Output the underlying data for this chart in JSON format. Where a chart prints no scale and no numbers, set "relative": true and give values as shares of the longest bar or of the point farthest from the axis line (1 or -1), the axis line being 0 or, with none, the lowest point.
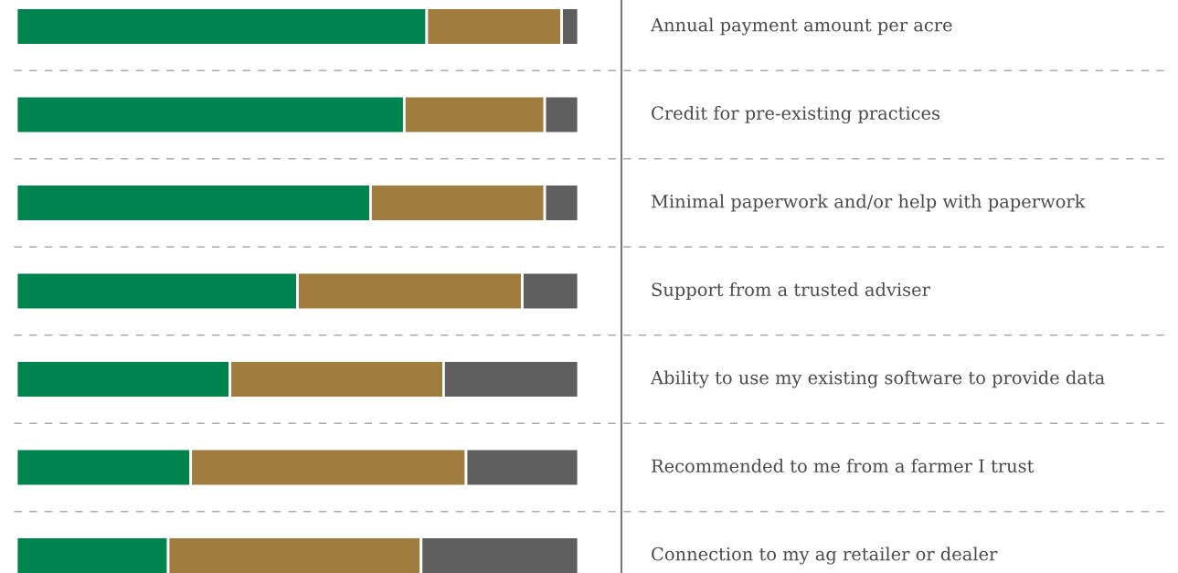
{
  "chart_data": {
    "type": "bar",
    "orientation": "horizontal",
    "stacked": true,
    "relative": true,
    "categories": [
      "Annual payment amount per acre",
      "Credit for pre-existing practices",
      "Minimal paperwork and/or help with paperwork",
      "Support from a trusted adviser",
      "Ability to use my existing software to provide data",
      "Recommended to me from a farmer I trust",
      "Connection to my ag retailer or dealer"
    ],
    "series": [
      {
        "color": "#00844f",
        "values": [
          0.73,
          0.69,
          0.63,
          0.5,
          0.38,
          0.31,
          0.27
        ]
      },
      {
        "color": "#a07c3e",
        "values": [
          0.24,
          0.25,
          0.31,
          0.4,
          0.38,
          0.49,
          0.45
        ]
      },
      {
        "color": "#5f5f5f",
        "values": [
          0.03,
          0.06,
          0.06,
          0.1,
          0.24,
          0.2,
          0.28
        ]
      }
    ]
  }
}
